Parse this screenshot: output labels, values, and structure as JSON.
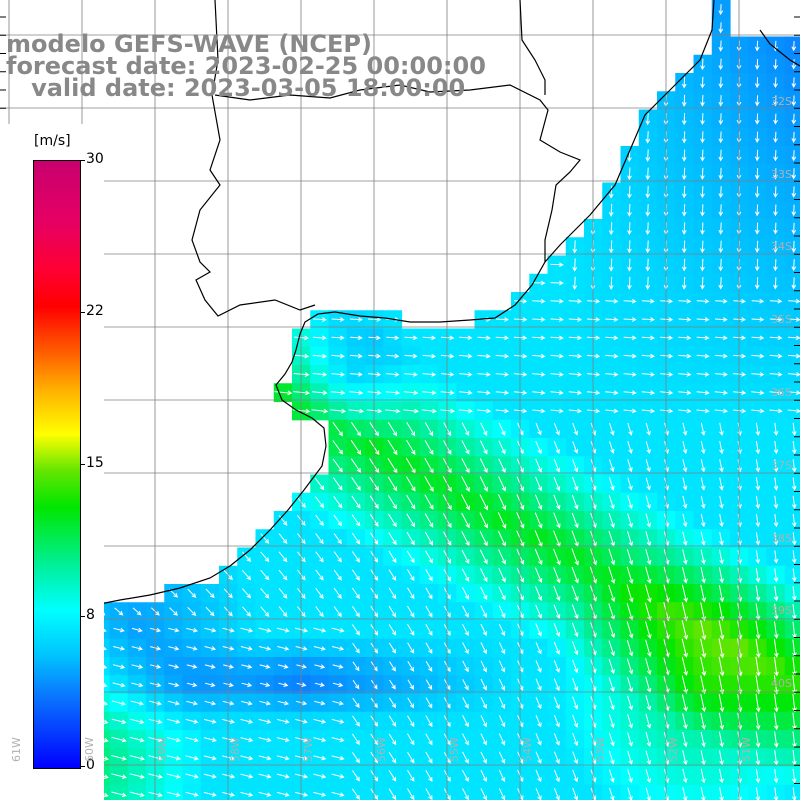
{
  "title": {
    "line1": "modelo GEFS-WAVE (NCEP)",
    "line2": "forecast date: 2023-02-25 00:00:00",
    "line3": "   valid date: 2023-03-05 18:00:00"
  },
  "colorbar": {
    "unit": "[m/s]",
    "ticks": [
      "30",
      "22",
      "15",
      "8",
      "0"
    ],
    "colors": [
      "#0000ff",
      "#00ffff",
      "#00e600",
      "#ffff00",
      "#ff0000",
      "#c8006e"
    ]
  },
  "lat_labels": [
    "32S",
    "33S",
    "34S",
    "35S",
    "36S",
    "37S",
    "38S",
    "39S",
    "40S"
  ],
  "lon_labels": [
    "61W",
    "60W",
    "59W",
    "58W",
    "57W",
    "56W",
    "55W",
    "54W",
    "53W",
    "52W",
    "51W"
  ],
  "colors": {
    "land": "#ffffff",
    "coast": "#000000",
    "grid": "#808080",
    "arrow": "#ffffff"
  }
}
